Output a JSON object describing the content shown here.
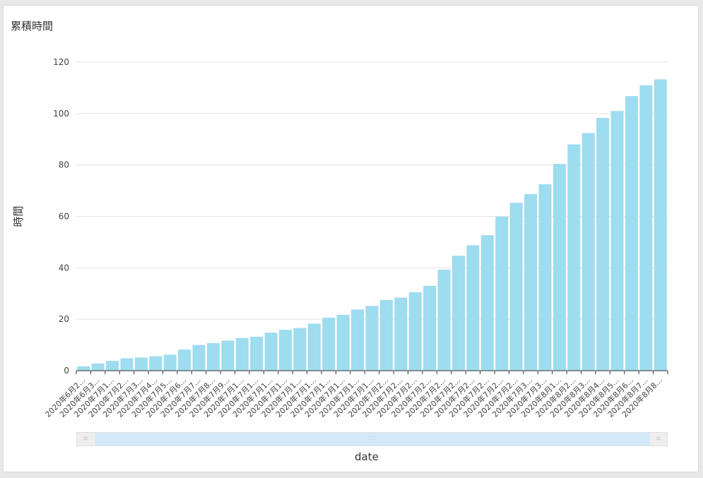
{
  "chart_data": {
    "type": "bar",
    "title": "累積時間",
    "xlabel": "date",
    "ylabel": "時間",
    "ylim": [
      0,
      120
    ],
    "yticks": [
      "0",
      "20",
      "40",
      "60",
      "80",
      "100",
      "120"
    ],
    "grid": true,
    "bar_color": "#9edcef",
    "categories": [
      "2020年6月2...",
      "2020年6月3...",
      "2020年7月1...",
      "2020年7月2...",
      "2020年7月3...",
      "2020年7月4...",
      "2020年7月5...",
      "2020年7月6...",
      "2020年7月7...",
      "2020年7月8...",
      "2020年7月9...",
      "2020年7月1...",
      "2020年7月1...",
      "2020年7月1...",
      "2020年7月1...",
      "2020年7月1...",
      "2020年7月1...",
      "2020年7月1...",
      "2020年7月1...",
      "2020年7月1...",
      "2020年7月1...",
      "2020年7月2...",
      "2020年7月2...",
      "2020年7月2...",
      "2020年7月2...",
      "2020年7月2...",
      "2020年7月2...",
      "2020年7月2...",
      "2020年7月2...",
      "2020年7月2...",
      "2020年7月2...",
      "2020年7月3...",
      "2020年7月3...",
      "2020年8月1...",
      "2020年8月2...",
      "2020年8月3...",
      "2020年8月4...",
      "2020年8月5...",
      "2020年8月6...",
      "2020年8月7...",
      "2020年8月8..."
    ],
    "values": [
      1.7,
      2.8,
      3.8,
      4.8,
      5.1,
      5.6,
      6.2,
      8.2,
      10.0,
      10.7,
      11.7,
      12.7,
      13.2,
      14.8,
      15.9,
      16.6,
      18.3,
      20.6,
      21.7,
      23.8,
      25.2,
      27.5,
      28.4,
      30.5,
      33.0,
      39.3,
      44.7,
      48.8,
      52.7,
      59.9,
      65.3,
      68.7,
      72.5,
      80.4,
      88.0,
      92.4,
      98.3,
      101.0,
      106.8,
      111.0,
      113.3
    ]
  },
  "zoom": {
    "handle_left": "≡",
    "handle_right": "≡",
    "grip": ":::"
  }
}
